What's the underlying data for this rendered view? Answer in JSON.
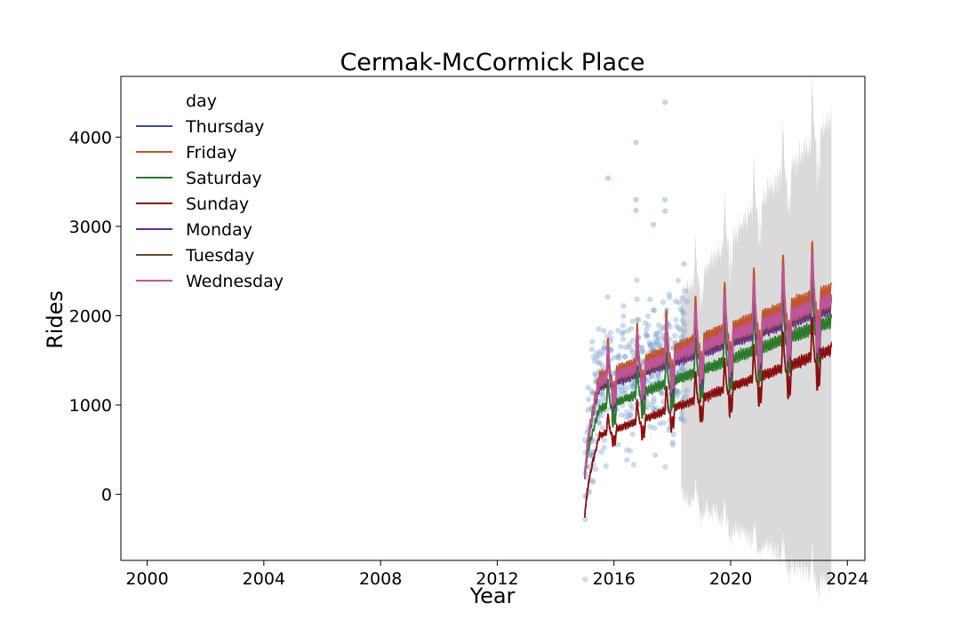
{
  "chart_data": {
    "type": "line",
    "title": "Cermak-McCormick Place",
    "xlabel": "Year",
    "ylabel": "Rides",
    "xlim": [
      1999.1,
      2024.6
    ],
    "ylim": [
      -740,
      4680
    ],
    "xticks": [
      2000,
      2004,
      2008,
      2012,
      2016,
      2020,
      2024
    ],
    "yticks": [
      0,
      1000,
      2000,
      3000,
      4000
    ],
    "grid": false,
    "legend": {
      "title": "day",
      "placement": "top-left"
    },
    "forecast_start": 2015.0,
    "forecast_end": 2023.45,
    "series": [
      {
        "name": "Thursday",
        "color": "#3b4a9c",
        "level_2016": 1280,
        "level_2023": 2080
      },
      {
        "name": "Friday",
        "color": "#c0562a",
        "level_2016": 1380,
        "level_2023": 2230
      },
      {
        "name": "Saturday",
        "color": "#2a7a2a",
        "level_2016": 1020,
        "level_2023": 1880
      },
      {
        "name": "Sunday",
        "color": "#8b0f0f",
        "level_2016": 720,
        "level_2023": 1560
      },
      {
        "name": "Monday",
        "color": "#6a2c8e",
        "level_2016": 1260,
        "level_2023": 2040
      },
      {
        "name": "Tuesday",
        "color": "#6b4a2a",
        "level_2016": 1300,
        "level_2023": 2100
      },
      {
        "name": "Wednesday",
        "color": "#c0549a",
        "level_2016": 1320,
        "level_2023": 2120
      }
    ],
    "observed_points": {
      "color": "#6f9bc8",
      "x_range": [
        2015.0,
        2018.5
      ],
      "approx_count": 420,
      "outliers": [
        {
          "x": 2015.8,
          "y": 3540
        },
        {
          "x": 2016.75,
          "y": 3940
        },
        {
          "x": 2016.75,
          "y": 3300
        },
        {
          "x": 2016.75,
          "y": 3180
        },
        {
          "x": 2017.35,
          "y": 3020
        },
        {
          "x": 2017.75,
          "y": 4390
        },
        {
          "x": 2017.75,
          "y": 3300
        },
        {
          "x": 2017.75,
          "y": 3170
        },
        {
          "x": 2018.4,
          "y": 2580
        }
      ]
    },
    "uncertainty_band": {
      "color": "#d3d3d3",
      "x_range": [
        2018.3,
        2023.45
      ]
    }
  }
}
